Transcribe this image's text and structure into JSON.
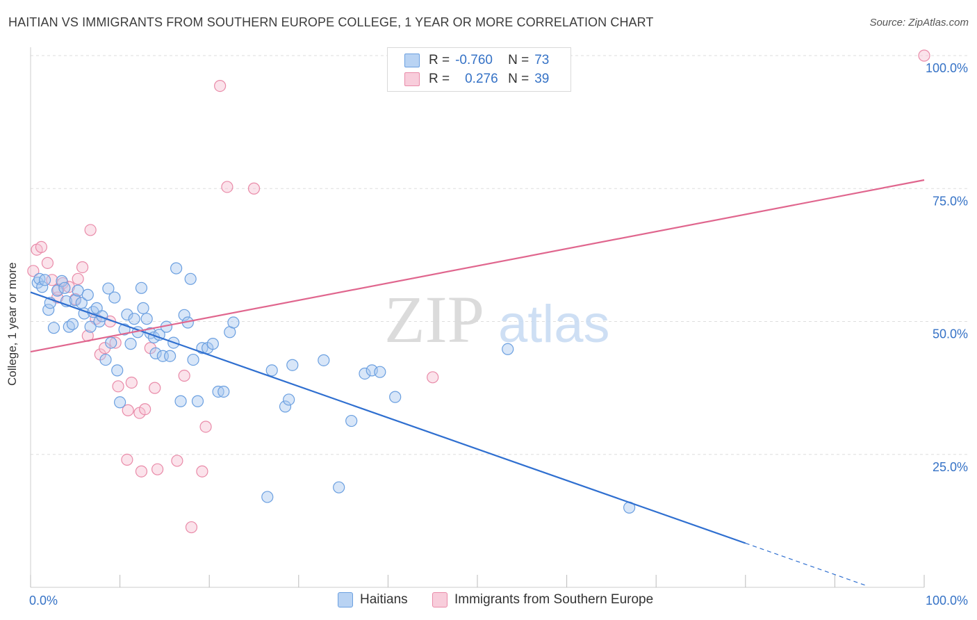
{
  "title": "HAITIAN VS IMMIGRANTS FROM SOUTHERN EUROPE COLLEGE, 1 YEAR OR MORE CORRELATION CHART",
  "source": "Source: ZipAtlas.com",
  "watermark": {
    "zip": "ZIP",
    "atlas": "atlas"
  },
  "legend": {
    "rows": [
      {
        "r_label": "R =",
        "r_value": "-0.760",
        "n_label": "N =",
        "n_value": "73"
      },
      {
        "r_label": "R =",
        "r_value": "0.276",
        "n_label": "N =",
        "n_value": "39"
      }
    ]
  },
  "colors": {
    "blue_fill": "#a9c8ef",
    "blue_stroke": "#6a9fe0",
    "blue_line": "#2f6fd0",
    "pink_fill": "#f6c2d2",
    "pink_stroke": "#e98aa8",
    "pink_line": "#e0668e",
    "axis_text": "#3572c6",
    "grid": "#dddddd"
  },
  "chart_data": {
    "type": "scatter",
    "xlabel": "",
    "ylabel": "College, 1 year or more",
    "xlim": [
      0,
      100
    ],
    "ylim": [
      0,
      100
    ],
    "x_tick_labels": [
      "0.0%",
      "100.0%"
    ],
    "y_ticks": [
      25,
      50,
      75,
      100
    ],
    "y_tick_labels": [
      "25.0%",
      "50.0%",
      "75.0%",
      "100.0%"
    ],
    "grid": true,
    "legend_position": "top-center",
    "series": [
      {
        "name": "Haitians",
        "color": "#6a9fe0",
        "trend": {
          "x_start": 0,
          "y_start": 55.5,
          "x_end": 80,
          "y_end": 8.3,
          "dashed_to_x": 93.5
        },
        "points": [
          [
            0.8,
            57.3
          ],
          [
            1.0,
            58.0
          ],
          [
            1.3,
            56.5
          ],
          [
            1.6,
            57.8
          ],
          [
            2.0,
            52.2
          ],
          [
            2.2,
            53.5
          ],
          [
            2.6,
            48.8
          ],
          [
            3.0,
            55.8
          ],
          [
            3.5,
            57.6
          ],
          [
            3.8,
            56.3
          ],
          [
            4.0,
            53.8
          ],
          [
            4.3,
            49.0
          ],
          [
            4.7,
            49.5
          ],
          [
            5.0,
            54.0
          ],
          [
            5.3,
            55.8
          ],
          [
            5.7,
            53.5
          ],
          [
            6.0,
            51.5
          ],
          [
            6.4,
            55.0
          ],
          [
            6.7,
            49.0
          ],
          [
            7.0,
            51.8
          ],
          [
            7.4,
            52.5
          ],
          [
            7.7,
            50.0
          ],
          [
            8.0,
            51.0
          ],
          [
            8.4,
            42.8
          ],
          [
            8.7,
            56.2
          ],
          [
            9.0,
            46.0
          ],
          [
            9.4,
            54.5
          ],
          [
            9.7,
            40.8
          ],
          [
            10.0,
            34.8
          ],
          [
            10.5,
            48.5
          ],
          [
            10.8,
            51.3
          ],
          [
            11.2,
            45.8
          ],
          [
            11.6,
            50.5
          ],
          [
            12.0,
            48.0
          ],
          [
            12.4,
            56.3
          ],
          [
            12.6,
            52.5
          ],
          [
            13.0,
            50.5
          ],
          [
            13.4,
            47.8
          ],
          [
            13.8,
            47.0
          ],
          [
            14.0,
            44.0
          ],
          [
            14.4,
            47.5
          ],
          [
            14.8,
            43.5
          ],
          [
            15.2,
            49.0
          ],
          [
            15.6,
            43.5
          ],
          [
            16.0,
            46.0
          ],
          [
            16.3,
            60.0
          ],
          [
            16.8,
            35.0
          ],
          [
            17.2,
            51.2
          ],
          [
            17.6,
            49.8
          ],
          [
            17.9,
            58.0
          ],
          [
            18.2,
            42.8
          ],
          [
            18.7,
            35.0
          ],
          [
            19.2,
            45.0
          ],
          [
            19.8,
            45.0
          ],
          [
            20.4,
            45.8
          ],
          [
            21.0,
            36.8
          ],
          [
            21.6,
            36.8
          ],
          [
            22.3,
            48.0
          ],
          [
            22.7,
            49.8
          ],
          [
            26.5,
            17.0
          ],
          [
            27.0,
            40.8
          ],
          [
            28.5,
            34.0
          ],
          [
            28.9,
            35.3
          ],
          [
            29.3,
            41.8
          ],
          [
            32.8,
            42.7
          ],
          [
            34.5,
            18.8
          ],
          [
            35.9,
            31.3
          ],
          [
            37.4,
            40.2
          ],
          [
            38.2,
            40.8
          ],
          [
            39.1,
            40.5
          ],
          [
            40.8,
            35.8
          ],
          [
            53.4,
            44.8
          ],
          [
            67.0,
            15.0
          ]
        ]
      },
      {
        "name": "Immigrants from Southern Europe",
        "color": "#e98aa8",
        "trend": {
          "x_start": 0,
          "y_start": 44.3,
          "x_end": 100,
          "y_end": 76.6
        },
        "points": [
          [
            0.3,
            59.5
          ],
          [
            0.7,
            63.5
          ],
          [
            1.2,
            64.0
          ],
          [
            1.9,
            61.0
          ],
          [
            2.4,
            57.8
          ],
          [
            3.0,
            54.5
          ],
          [
            3.6,
            57.2
          ],
          [
            4.3,
            56.5
          ],
          [
            5.0,
            54.2
          ],
          [
            5.3,
            58.0
          ],
          [
            5.8,
            60.2
          ],
          [
            6.4,
            47.3
          ],
          [
            6.7,
            67.2
          ],
          [
            7.3,
            50.5
          ],
          [
            7.8,
            43.8
          ],
          [
            8.3,
            45.0
          ],
          [
            8.9,
            50.0
          ],
          [
            9.5,
            46.0
          ],
          [
            9.8,
            37.8
          ],
          [
            10.8,
            24.0
          ],
          [
            10.9,
            33.3
          ],
          [
            11.3,
            38.5
          ],
          [
            12.2,
            32.8
          ],
          [
            12.4,
            21.8
          ],
          [
            12.8,
            33.5
          ],
          [
            13.4,
            45.0
          ],
          [
            13.9,
            37.5
          ],
          [
            14.2,
            22.2
          ],
          [
            16.4,
            23.8
          ],
          [
            17.2,
            39.8
          ],
          [
            18.0,
            11.3
          ],
          [
            19.2,
            21.8
          ],
          [
            19.6,
            30.2
          ],
          [
            21.2,
            94.3
          ],
          [
            22.0,
            75.3
          ],
          [
            25.0,
            75.0
          ],
          [
            45.0,
            39.5
          ],
          [
            100.0,
            100.0
          ],
          [
            3.1,
            56.0
          ]
        ]
      }
    ]
  }
}
